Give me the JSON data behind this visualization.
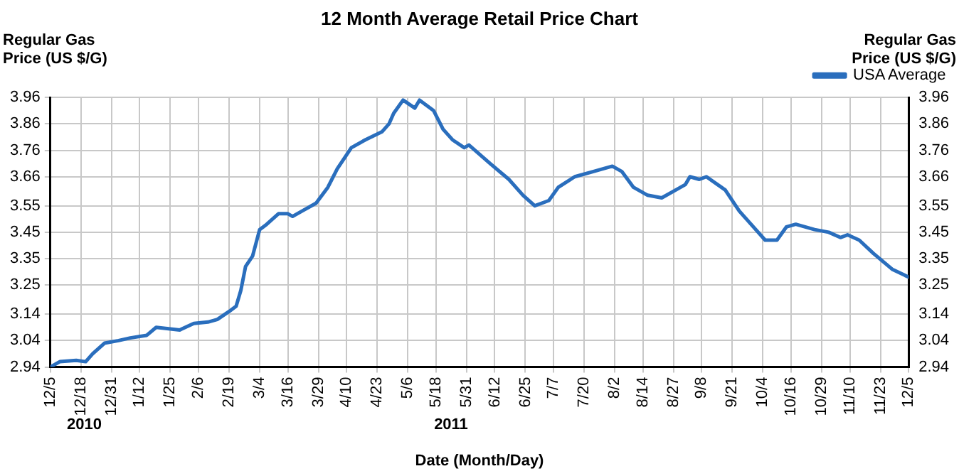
{
  "chart_data": {
    "type": "line",
    "title": "12 Month Average Retail Price Chart",
    "xlabel": "Date (Month/Day)",
    "ylabel": "Regular Gas Price (US $/G)",
    "y2label": "Regular Gas Price (US $/G)",
    "annotations": [
      "2010",
      "2011"
    ],
    "x": [
      "2010-12-05",
      "2010-12-09",
      "2010-12-16",
      "2010-12-20",
      "2010-12-23",
      "2010-12-28",
      "2011-01-03",
      "2011-01-08",
      "2011-01-15",
      "2011-01-19",
      "2011-01-29",
      "2011-02-04",
      "2011-02-10",
      "2011-02-14",
      "2011-02-19",
      "2011-02-22",
      "2011-02-24",
      "2011-02-26",
      "2011-03-01",
      "2011-03-04",
      "2011-03-07",
      "2011-03-12",
      "2011-03-16",
      "2011-03-18",
      "2011-03-22",
      "2011-03-28",
      "2011-04-02",
      "2011-04-06",
      "2011-04-12",
      "2011-04-18",
      "2011-04-25",
      "2011-04-28",
      "2011-04-30",
      "2011-05-04",
      "2011-05-09",
      "2011-05-11",
      "2011-05-17",
      "2011-05-21",
      "2011-05-25",
      "2011-05-30",
      "2011-06-01",
      "2011-06-10",
      "2011-06-18",
      "2011-06-24",
      "2011-06-29",
      "2011-07-05",
      "2011-07-09",
      "2011-07-16",
      "2011-07-24",
      "2011-08-01",
      "2011-08-05",
      "2011-08-10",
      "2011-08-16",
      "2011-08-22",
      "2011-08-28",
      "2011-09-01",
      "2011-09-03",
      "2011-09-07",
      "2011-09-10",
      "2011-09-18",
      "2011-09-24",
      "2011-10-01",
      "2011-10-05",
      "2011-10-10",
      "2011-10-14",
      "2011-10-18",
      "2011-10-26",
      "2011-11-01",
      "2011-11-06",
      "2011-11-09",
      "2011-11-14",
      "2011-11-20",
      "2011-11-28",
      "2011-12-05"
    ],
    "series": [
      {
        "name": "USA Average",
        "color": "#2a6ebd",
        "values": [
          2.94,
          2.96,
          2.965,
          2.96,
          2.99,
          3.03,
          3.04,
          3.05,
          3.06,
          3.09,
          3.08,
          3.105,
          3.11,
          3.12,
          3.15,
          3.17,
          3.23,
          3.32,
          3.36,
          3.46,
          3.48,
          3.52,
          3.52,
          3.51,
          3.53,
          3.56,
          3.62,
          3.69,
          3.77,
          3.8,
          3.83,
          3.86,
          3.9,
          3.95,
          3.92,
          3.95,
          3.91,
          3.84,
          3.8,
          3.77,
          3.78,
          3.71,
          3.65,
          3.59,
          3.55,
          3.57,
          3.62,
          3.66,
          3.68,
          3.7,
          3.68,
          3.62,
          3.59,
          3.58,
          3.61,
          3.63,
          3.66,
          3.65,
          3.66,
          3.61,
          3.53,
          3.46,
          3.42,
          3.42,
          3.47,
          3.48,
          3.46,
          3.45,
          3.43,
          3.44,
          3.42,
          3.37,
          3.31,
          3.28
        ]
      }
    ],
    "xlim": [
      "2010-12-05",
      "2011-12-05"
    ],
    "xticks": [
      {
        "value": "2010-12-05",
        "label": "12/5"
      },
      {
        "value": "2010-12-18",
        "label": "12/18"
      },
      {
        "value": "2010-12-31",
        "label": "12/31"
      },
      {
        "value": "2011-01-12",
        "label": "1/12"
      },
      {
        "value": "2011-01-25",
        "label": "1/25"
      },
      {
        "value": "2011-02-06",
        "label": "2/6"
      },
      {
        "value": "2011-02-19",
        "label": "2/19"
      },
      {
        "value": "2011-03-04",
        "label": "3/4"
      },
      {
        "value": "2011-03-16",
        "label": "3/16"
      },
      {
        "value": "2011-03-29",
        "label": "3/29"
      },
      {
        "value": "2011-04-10",
        "label": "4/10"
      },
      {
        "value": "2011-04-23",
        "label": "4/23"
      },
      {
        "value": "2011-05-06",
        "label": "5/6"
      },
      {
        "value": "2011-05-18",
        "label": "5/18"
      },
      {
        "value": "2011-05-31",
        "label": "5/31"
      },
      {
        "value": "2011-06-12",
        "label": "6/12"
      },
      {
        "value": "2011-06-25",
        "label": "6/25"
      },
      {
        "value": "2011-07-07",
        "label": "7/7"
      },
      {
        "value": "2011-07-20",
        "label": "7/20"
      },
      {
        "value": "2011-08-02",
        "label": "8/2"
      },
      {
        "value": "2011-08-14",
        "label": "8/14"
      },
      {
        "value": "2011-08-27",
        "label": "8/27"
      },
      {
        "value": "2011-09-08",
        "label": "9/8"
      },
      {
        "value": "2011-09-21",
        "label": "9/21"
      },
      {
        "value": "2011-10-04",
        "label": "10/4"
      },
      {
        "value": "2011-10-16",
        "label": "10/16"
      },
      {
        "value": "2011-10-29",
        "label": "10/29"
      },
      {
        "value": "2011-11-10",
        "label": "11/10"
      },
      {
        "value": "2011-11-23",
        "label": "11/23"
      },
      {
        "value": "2011-12-05",
        "label": "12/5"
      }
    ],
    "ylim": [
      2.94,
      3.96
    ],
    "yticks": [
      2.94,
      3.04,
      3.14,
      3.25,
      3.35,
      3.45,
      3.55,
      3.66,
      3.76,
      3.86,
      3.96
    ],
    "y2lim": [
      2.94,
      3.96
    ],
    "y2ticks": [
      2.94,
      3.04,
      3.14,
      3.25,
      3.35,
      3.45,
      3.55,
      3.66,
      3.76,
      3.86,
      3.96
    ],
    "grid": true,
    "legend": "top right",
    "marker": "none",
    "line_style": "solid"
  }
}
